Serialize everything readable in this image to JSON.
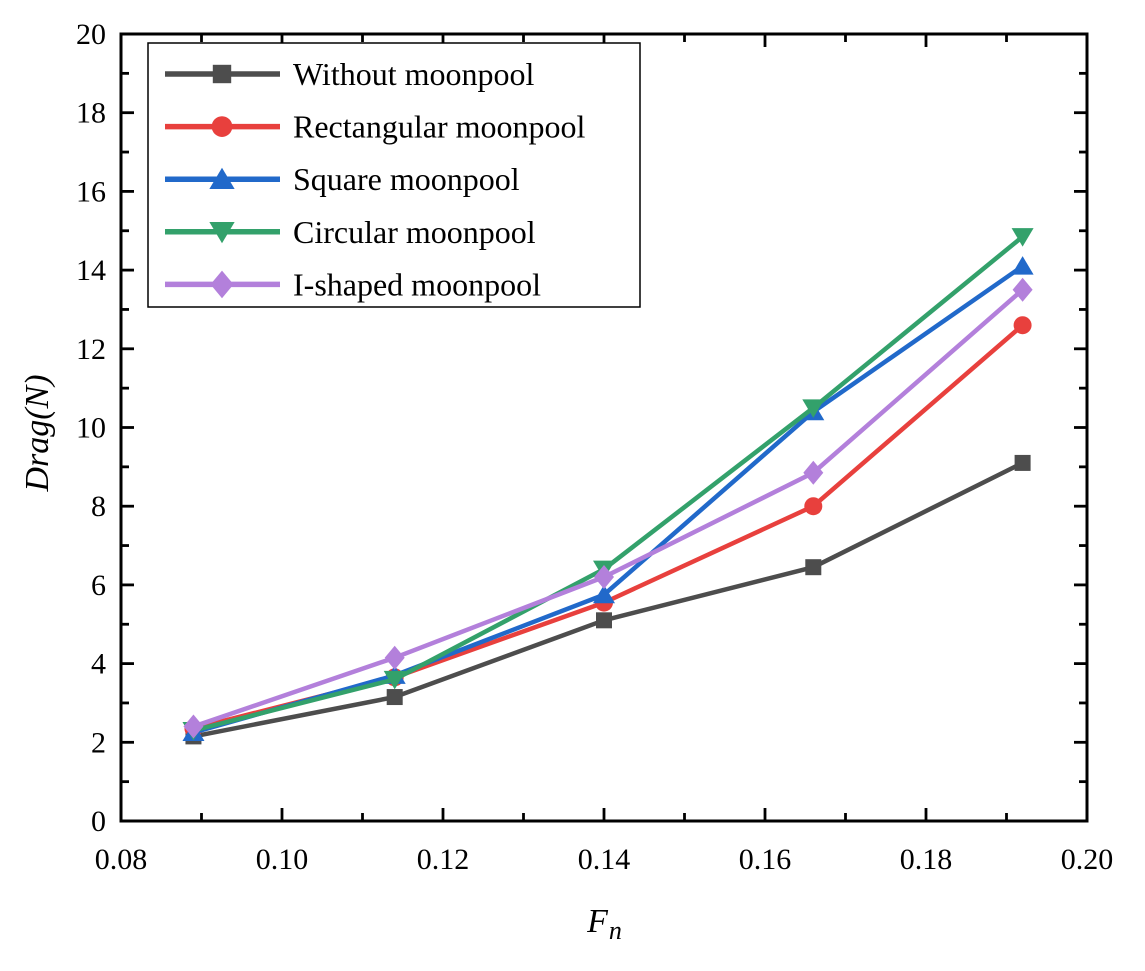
{
  "figure": {
    "background": "#ffffff",
    "frame_color": "#000000",
    "text_color": "#000000"
  },
  "chart_data": {
    "type": "line",
    "title": "",
    "xlabel": "F",
    "xlabel_sub": "n",
    "ylabel": "Drag(N)",
    "xlim": [
      0.08,
      0.2
    ],
    "ylim": [
      0,
      20
    ],
    "grid": false,
    "legend_position": "upper-left",
    "x_tick_labels": [
      "0.08",
      "0.10",
      "0.12",
      "0.14",
      "0.16",
      "0.18",
      "0.20"
    ],
    "x_major_ticks": [
      0.08,
      0.1,
      0.12,
      0.14,
      0.16,
      0.18,
      0.2
    ],
    "x_minor_step": 0.01,
    "y_tick_labels": [
      "0",
      "2",
      "4",
      "6",
      "8",
      "10",
      "12",
      "14",
      "16",
      "18",
      "20"
    ],
    "y_major_ticks": [
      0,
      2,
      4,
      6,
      8,
      10,
      12,
      14,
      16,
      18,
      20
    ],
    "y_minor_step": 1,
    "x": [
      0.089,
      0.114,
      0.14,
      0.166,
      0.192
    ],
    "series": [
      {
        "name": "Without moonpool",
        "marker": "square",
        "color": "#4d4d4d",
        "values": [
          2.15,
          3.15,
          5.1,
          6.45,
          9.1
        ]
      },
      {
        "name": "Rectangular moonpool",
        "marker": "circle",
        "color": "#e8403d",
        "values": [
          2.35,
          3.65,
          5.55,
          8.0,
          12.6
        ]
      },
      {
        "name": "Square moonpool",
        "marker": "triangle-up",
        "color": "#2169ca",
        "values": [
          2.25,
          3.7,
          5.75,
          10.4,
          14.1
        ]
      },
      {
        "name": "Circular moonpool",
        "marker": "triangle-down",
        "color": "#33a16b",
        "values": [
          2.3,
          3.6,
          6.4,
          10.5,
          14.85
        ]
      },
      {
        "name": "I-shaped moonpool",
        "marker": "diamond",
        "color": "#b380db",
        "values": [
          2.4,
          4.15,
          6.2,
          8.85,
          13.5
        ]
      }
    ]
  }
}
